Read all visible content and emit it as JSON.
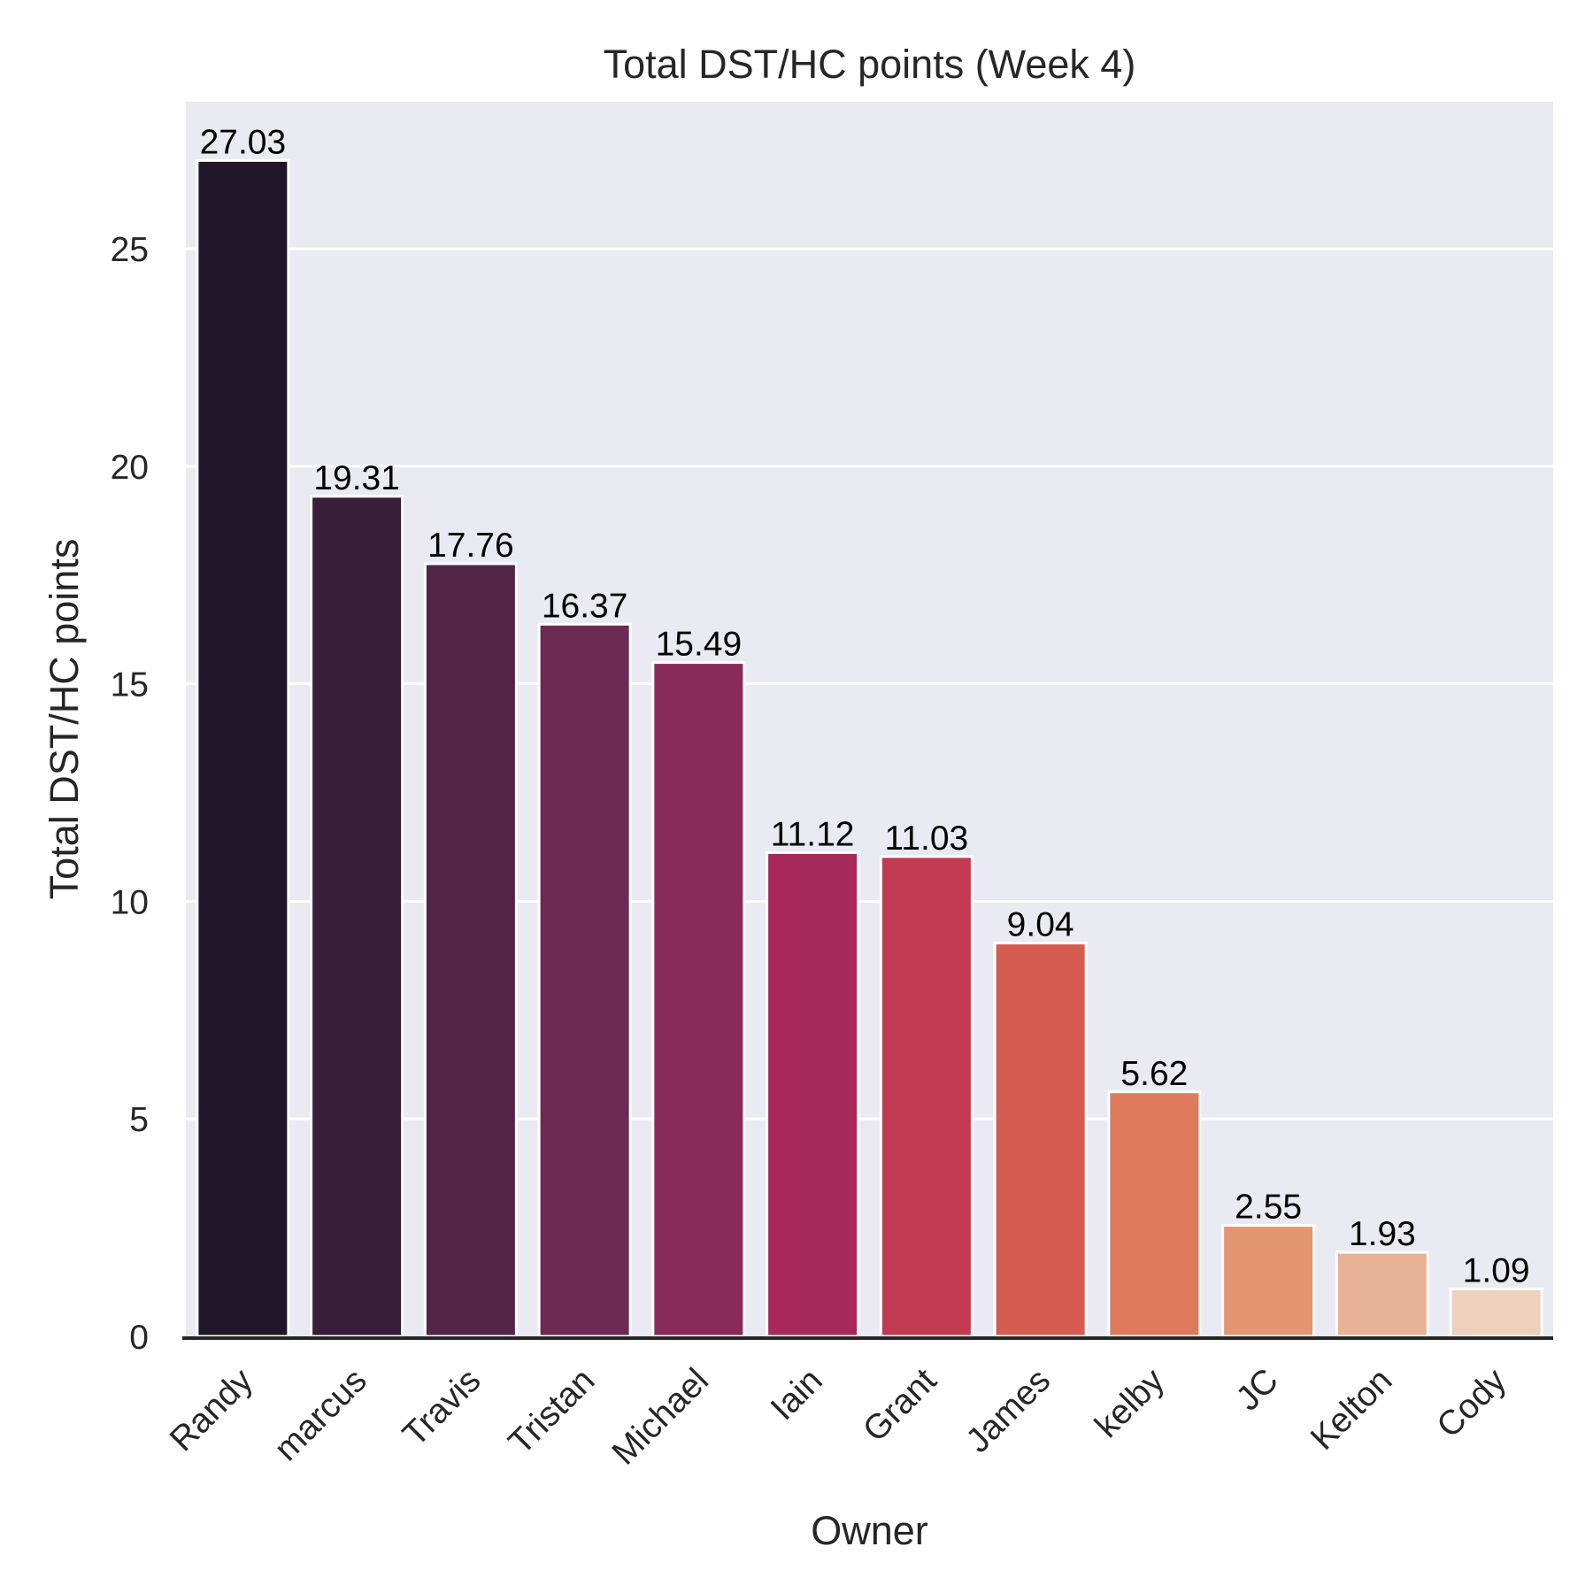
{
  "chart_data": {
    "type": "bar",
    "title": "Total DST/HC points (Week 4)",
    "xlabel": "Owner",
    "ylabel": "Total DST/HC points",
    "categories": [
      "Randy",
      "marcus",
      "Travis",
      "Tristan",
      "Michael",
      "Iain",
      "Grant",
      "James",
      "kelby",
      "JC",
      "Kelton",
      "Cody"
    ],
    "values": [
      27.03,
      19.31,
      17.76,
      16.37,
      15.49,
      11.12,
      11.03,
      9.04,
      5.62,
      2.55,
      1.93,
      1.09
    ],
    "data_labels": [
      "27.03",
      "19.31",
      "17.76",
      "16.37",
      "15.49",
      "11.12",
      "11.03",
      "9.04",
      "5.62",
      "2.55",
      "1.93",
      "1.09"
    ],
    "ylim": [
      0,
      28.38
    ],
    "yticks": [
      0,
      5,
      10,
      15,
      20,
      25
    ],
    "ytick_labels": [
      "0",
      "5",
      "10",
      "15",
      "20",
      "25"
    ],
    "grid": true,
    "legend": "none",
    "colors": [
      "#1f1729",
      "#381e38",
      "#522546",
      "#6c2a52",
      "#892a5b",
      "#a6295a",
      "#c13a52",
      "#d45c51",
      "#de7a5c",
      "#e49673",
      "#e8b294",
      "#eed0bc"
    ],
    "plot_background": "#eaeaf2",
    "grid_color": "#ffffff"
  }
}
